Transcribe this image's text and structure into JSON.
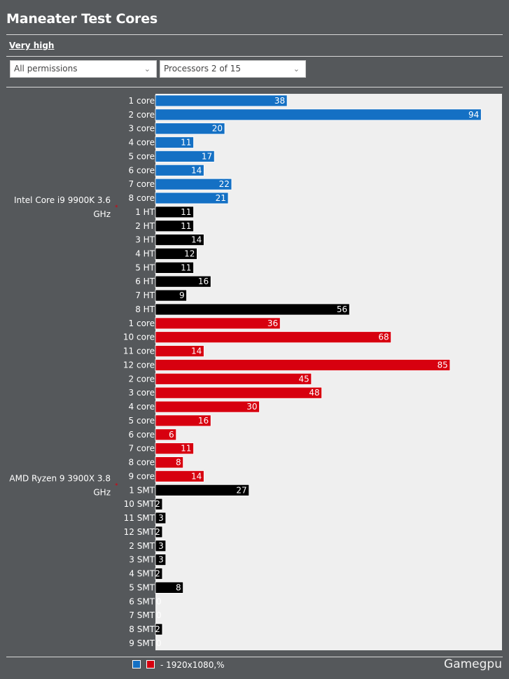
{
  "title": "Maneater Test Cores",
  "setting_label": "Very high",
  "filters": {
    "permissions": "All permissions",
    "processors": "Processors 2 of 15"
  },
  "footer": {
    "legend_text": "- 1920x1080,%",
    "brand": "Gamegpu"
  },
  "colors": {
    "intel_core": "#1470c4",
    "amd_core": "#d7000f",
    "thread": "#000000",
    "plot_bg": "#efefef",
    "page_bg": "#55585b"
  },
  "chart_data": {
    "type": "bar",
    "orientation": "horizontal",
    "xlim": [
      0,
      100
    ],
    "grid": false,
    "groups": [
      {
        "name": "Intel Core i9 9900K 3.6 GHz",
        "bars": [
          {
            "label": "1 core",
            "value": 38,
            "kind": "core"
          },
          {
            "label": "2 core",
            "value": 94,
            "kind": "core"
          },
          {
            "label": "3 core",
            "value": 20,
            "kind": "core"
          },
          {
            "label": "4 core",
            "value": 11,
            "kind": "core"
          },
          {
            "label": "5 core",
            "value": 17,
            "kind": "core"
          },
          {
            "label": "6 core",
            "value": 14,
            "kind": "core"
          },
          {
            "label": "7 core",
            "value": 22,
            "kind": "core"
          },
          {
            "label": "8 core",
            "value": 21,
            "kind": "core"
          },
          {
            "label": "1 HT",
            "value": 11,
            "kind": "thread"
          },
          {
            "label": "2 HT",
            "value": 11,
            "kind": "thread"
          },
          {
            "label": "3 HT",
            "value": 14,
            "kind": "thread"
          },
          {
            "label": "4 HT",
            "value": 12,
            "kind": "thread"
          },
          {
            "label": "5 HT",
            "value": 11,
            "kind": "thread"
          },
          {
            "label": "6 HT",
            "value": 16,
            "kind": "thread"
          },
          {
            "label": "7 HT",
            "value": 9,
            "kind": "thread"
          },
          {
            "label": "8 HT",
            "value": 56,
            "kind": "thread"
          }
        ]
      },
      {
        "name": "AMD Ryzen 9 3900X 3.8 GHz",
        "bars": [
          {
            "label": "1 core",
            "value": 36,
            "kind": "core"
          },
          {
            "label": "10 core",
            "value": 68,
            "kind": "core"
          },
          {
            "label": "11 core",
            "value": 14,
            "kind": "core"
          },
          {
            "label": "12 core",
            "value": 85,
            "kind": "core"
          },
          {
            "label": "2 core",
            "value": 45,
            "kind": "core"
          },
          {
            "label": "3 core",
            "value": 48,
            "kind": "core"
          },
          {
            "label": "4 core",
            "value": 30,
            "kind": "core"
          },
          {
            "label": "5 core",
            "value": 16,
            "kind": "core"
          },
          {
            "label": "6 core",
            "value": 6,
            "kind": "core"
          },
          {
            "label": "7 core",
            "value": 11,
            "kind": "core"
          },
          {
            "label": "8 core",
            "value": 8,
            "kind": "core"
          },
          {
            "label": "9 core",
            "value": 14,
            "kind": "core"
          },
          {
            "label": "1 SMT",
            "value": 27,
            "kind": "thread"
          },
          {
            "label": "10 SMT",
            "value": 2,
            "kind": "thread"
          },
          {
            "label": "11 SMT",
            "value": 3,
            "kind": "thread"
          },
          {
            "label": "12 SMT",
            "value": 2,
            "kind": "thread"
          },
          {
            "label": "2 SMT",
            "value": 3,
            "kind": "thread"
          },
          {
            "label": "3 SMT",
            "value": 3,
            "kind": "thread"
          },
          {
            "label": "4 SMT",
            "value": 2,
            "kind": "thread"
          },
          {
            "label": "5 SMT",
            "value": 8,
            "kind": "thread"
          },
          {
            "label": "6 SMT",
            "value": 0,
            "kind": "thread"
          },
          {
            "label": "7 SMT",
            "value": 0,
            "kind": "thread"
          },
          {
            "label": "8 SMT",
            "value": 2,
            "kind": "thread"
          },
          {
            "label": "9 SMT",
            "value": 0,
            "kind": "thread"
          }
        ]
      }
    ]
  }
}
